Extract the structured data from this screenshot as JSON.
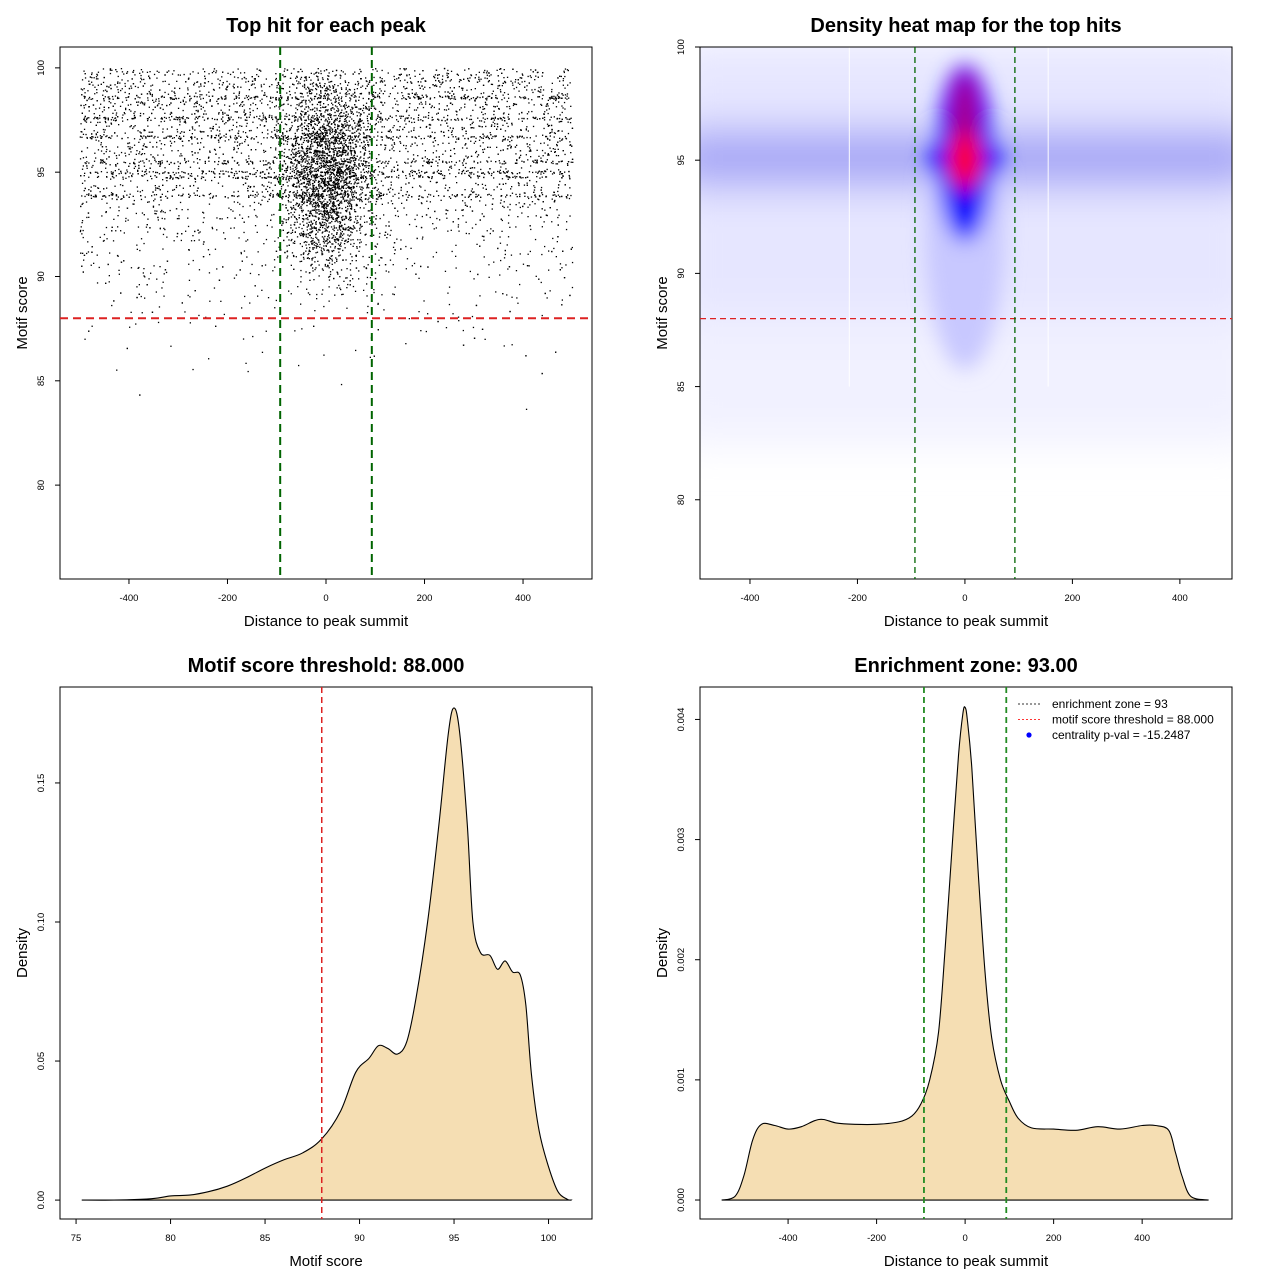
{
  "chart_data": [
    {
      "type": "scatter",
      "title": "Top hit for each peak",
      "xlabel": "Distance to peak summit",
      "ylabel": "Motif score",
      "xlim": [
        -540,
        540
      ],
      "ylim": [
        75.5,
        101
      ],
      "xticks": [
        -400,
        -200,
        0,
        200,
        400
      ],
      "yticks": [
        80,
        85,
        90,
        95,
        100
      ],
      "x_range": [
        -500,
        500
      ],
      "y_range": [
        76.5,
        100
      ],
      "hlines": [
        {
          "y": 88,
          "color": "#dd2222",
          "style": "dashed"
        }
      ],
      "vlines": [
        {
          "x": -93,
          "color": "#006400",
          "style": "dashed"
        },
        {
          "x": 93,
          "color": "#006400",
          "style": "dashed"
        }
      ]
    },
    {
      "type": "heatmap",
      "title": "Density heat map for the top hits",
      "xlabel": "Distance to peak summit",
      "ylabel": "Motif score",
      "xlim": [
        -493,
        497
      ],
      "ylim": [
        76.5,
        100
      ],
      "xticks": [
        -400,
        -200,
        0,
        200,
        400
      ],
      "yticks": [
        80,
        85,
        90,
        95,
        100
      ],
      "peak": {
        "x": 0,
        "y": 95
      },
      "colors": [
        "#ffffff",
        "#0000ff",
        "#ff0000"
      ],
      "hlines": [
        {
          "y": 88,
          "color": "#dd2222",
          "style": "dashed"
        }
      ],
      "vlines": [
        {
          "x": -93,
          "color": "#006400",
          "style": "dashed"
        },
        {
          "x": 93,
          "color": "#006400",
          "style": "dashed"
        }
      ]
    },
    {
      "type": "area",
      "title": "Motif score threshold: 88.000",
      "xlabel": "Motif score",
      "ylabel": "Density",
      "xlim": [
        74.15,
        102.3
      ],
      "ylim": [
        -0.0068,
        0.1845
      ],
      "xticks": [
        75,
        80,
        85,
        90,
        95,
        100
      ],
      "yticks": [
        0.0,
        0.05,
        0.1,
        0.15
      ],
      "ytick_labels": [
        "0.00",
        "0.05",
        "0.10",
        "0.15"
      ],
      "fill": "#f5deb3",
      "x": [
        75.3,
        77,
        79,
        80,
        81,
        82,
        83,
        84,
        85,
        86,
        87,
        88,
        89,
        89.8,
        90.5,
        91,
        91.5,
        92,
        92.5,
        93,
        93.6,
        94.2,
        94.7,
        95,
        95.3,
        95.7,
        96,
        96.4,
        96.9,
        97.3,
        97.7,
        98.1,
        98.5,
        98.8,
        99.1,
        99.5,
        100,
        100.5,
        101,
        101.2
      ],
      "y": [
        0,
        0,
        0.0005,
        0.0015,
        0.0018,
        0.003,
        0.005,
        0.008,
        0.0115,
        0.0145,
        0.017,
        0.022,
        0.032,
        0.046,
        0.051,
        0.0555,
        0.0545,
        0.0525,
        0.057,
        0.073,
        0.1,
        0.135,
        0.168,
        0.177,
        0.168,
        0.135,
        0.1,
        0.089,
        0.088,
        0.083,
        0.086,
        0.082,
        0.081,
        0.07,
        0.045,
        0.025,
        0.012,
        0.003,
        0.0003,
        0
      ],
      "vlines": [
        {
          "x": 88,
          "color": "#dd2222",
          "style": "dashed"
        }
      ]
    },
    {
      "type": "area",
      "title": "Enrichment zone: 93.00",
      "xlabel": "Distance to peak summit",
      "ylabel": "Density",
      "xlim": [
        -599,
        603
      ],
      "ylim": [
        -0.000158,
        0.00427
      ],
      "xticks": [
        -400,
        -200,
        0,
        200,
        400
      ],
      "yticks": [
        0.0,
        0.001,
        0.002,
        0.003,
        0.004
      ],
      "ytick_labels": [
        "0.000",
        "0.001",
        "0.002",
        "0.003",
        "0.004"
      ],
      "fill": "#f5deb3",
      "x": [
        -550,
        -520,
        -500,
        -480,
        -460,
        -430,
        -400,
        -370,
        -340,
        -320,
        -290,
        -250,
        -200,
        -150,
        -120,
        -100,
        -80,
        -60,
        -45,
        -30,
        -15,
        -5,
        0,
        5,
        15,
        30,
        45,
        60,
        80,
        100,
        120,
        150,
        200,
        250,
        300,
        350,
        400,
        430,
        460,
        475,
        490,
        510,
        550
      ],
      "y": [
        0,
        3e-05,
        0.0002,
        0.0005,
        0.00063,
        0.00062,
        0.00059,
        0.00061,
        0.00066,
        0.00067,
        0.00064,
        0.00063,
        0.00063,
        0.00065,
        0.0007,
        0.0008,
        0.001,
        0.0014,
        0.0021,
        0.0029,
        0.0037,
        0.00405,
        0.0041,
        0.004,
        0.0036,
        0.0027,
        0.0019,
        0.00135,
        0.001,
        0.00082,
        0.00068,
        0.0006,
        0.00059,
        0.00058,
        0.00061,
        0.00059,
        0.00062,
        0.00062,
        0.00058,
        0.0004,
        0.0002,
        3e-05,
        0
      ],
      "vlines": [
        {
          "x": -93,
          "color": "#228b22",
          "style": "dashed"
        },
        {
          "x": 93,
          "color": "#228b22",
          "style": "dashed"
        }
      ],
      "legend": {
        "placement": "top-right",
        "entries": [
          {
            "label": "enrichment zone = 93",
            "color": "#333333",
            "kind": "dotted-line"
          },
          {
            "label": "motif score threshold = 88.000",
            "color": "#ff3333",
            "kind": "dotted-line"
          },
          {
            "label": "centrality p-val = -15.2487",
            "color": "#0000ff",
            "kind": "point"
          }
        ]
      }
    }
  ]
}
